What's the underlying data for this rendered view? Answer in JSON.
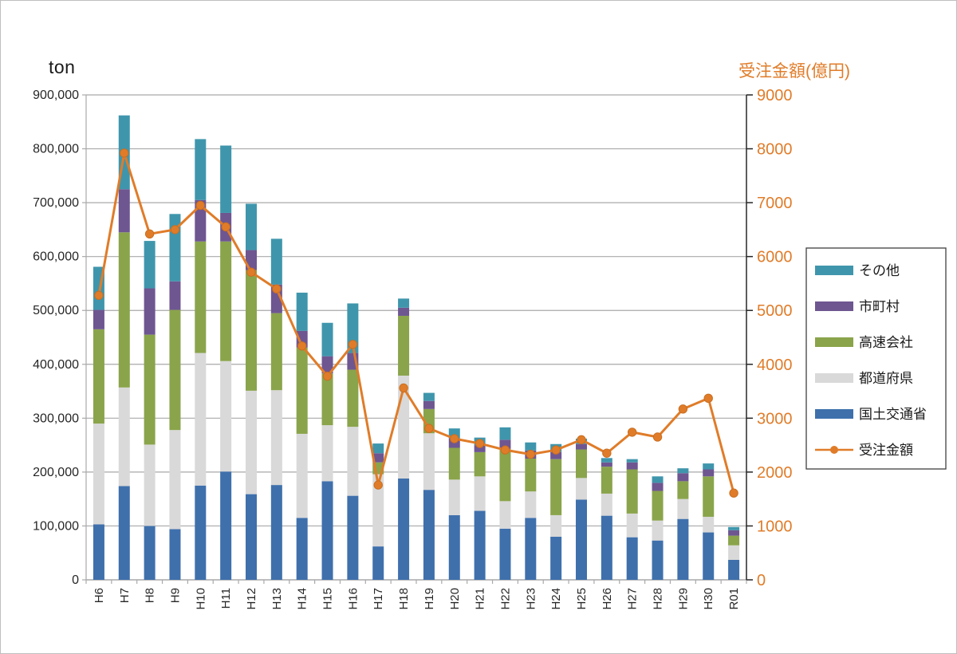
{
  "chart_data": {
    "type": "bar",
    "subtype": "stacked-bar-with-line",
    "categories": [
      "H6",
      "H7",
      "H8",
      "H9",
      "H10",
      "H11",
      "H12",
      "H13",
      "H14",
      "H15",
      "H16",
      "H17",
      "H18",
      "H19",
      "H20",
      "H21",
      "H22",
      "H23",
      "H24",
      "H25",
      "H26",
      "H27",
      "H28",
      "H29",
      "H30",
      "R01"
    ],
    "series": [
      {
        "name": "国土交通省",
        "color": "#3f70ac",
        "values": [
          103000,
          174000,
          100000,
          94000,
          175000,
          201000,
          159000,
          176000,
          115000,
          183000,
          156000,
          62000,
          188000,
          167000,
          120000,
          128000,
          95000,
          115000,
          80000,
          149000,
          119000,
          79000,
          73000,
          113000,
          88000,
          37000
        ]
      },
      {
        "name": "都道府県",
        "color": "#d9d9d9",
        "values": [
          187000,
          183000,
          151000,
          184000,
          246000,
          205000,
          192000,
          176000,
          156000,
          104000,
          128000,
          134000,
          191000,
          105000,
          66000,
          64000,
          51000,
          49000,
          40000,
          40000,
          41000,
          44000,
          37000,
          37000,
          29000,
          27000
        ]
      },
      {
        "name": "高速会社",
        "color": "#8aa44b",
        "values": [
          175000,
          288000,
          204000,
          223000,
          207000,
          222000,
          224000,
          143000,
          160000,
          96000,
          106000,
          22000,
          111000,
          45000,
          59000,
          45000,
          97000,
          61000,
          104000,
          53000,
          50000,
          82000,
          55000,
          33000,
          75000,
          18000
        ]
      },
      {
        "name": "市町村",
        "color": "#6e5691",
        "values": [
          36000,
          80000,
          86000,
          53000,
          77000,
          53000,
          37000,
          53000,
          31000,
          32000,
          31000,
          17000,
          15000,
          15000,
          18000,
          13000,
          17000,
          15000,
          13000,
          10000,
          8000,
          13000,
          15000,
          15000,
          13000,
          10000
        ]
      },
      {
        "name": "その他",
        "color": "#3f96ac",
        "values": [
          80000,
          137000,
          88000,
          125000,
          113000,
          125000,
          86000,
          85000,
          71000,
          62000,
          92000,
          18000,
          17000,
          15000,
          18000,
          14000,
          23000,
          15000,
          15000,
          10000,
          8000,
          6000,
          12000,
          9000,
          11000,
          6000
        ]
      }
    ],
    "line_series": {
      "name": "受注金額",
      "color": "#e07c29",
      "values": [
        5280,
        7920,
        6420,
        6500,
        6950,
        6550,
        5710,
        5400,
        4340,
        3780,
        4370,
        1760,
        3560,
        2810,
        2620,
        2530,
        2410,
        2330,
        2410,
        2600,
        2350,
        2740,
        2650,
        3170,
        3370,
        1610
      ]
    },
    "left_axis": {
      "title": "ton",
      "min": 0,
      "max": 900000,
      "step": 100000,
      "tick_labels": [
        "0",
        "100,000",
        "200,000",
        "300,000",
        "400,000",
        "500,000",
        "600,000",
        "700,000",
        "800,000",
        "900,000"
      ]
    },
    "right_axis": {
      "title": "受注金額(億円)",
      "min": 0,
      "max": 9000,
      "step": 1000,
      "tick_labels": [
        "0",
        "1000",
        "2000",
        "3000",
        "4000",
        "5000",
        "6000",
        "7000",
        "8000",
        "9000"
      ]
    },
    "legend": {
      "position": "right",
      "items": [
        {
          "label": "その他",
          "swatch": "box",
          "color": "#3f96ac"
        },
        {
          "label": "市町村",
          "swatch": "box",
          "color": "#6e5691"
        },
        {
          "label": "高速会社",
          "swatch": "box",
          "color": "#8aa44b"
        },
        {
          "label": "都道府県",
          "swatch": "box",
          "color": "#d9d9d9"
        },
        {
          "label": "国土交通省",
          "swatch": "box",
          "color": "#3f70ac"
        },
        {
          "label": "受注金額",
          "swatch": "line",
          "color": "#e07c29"
        }
      ]
    },
    "grid": true,
    "colors": {
      "gridline": "#a9a9a9",
      "axis_line": "#a9a9a9",
      "right_axis_line": "#262626",
      "axis_text": "#262626",
      "right_axis_text": "#e07c29",
      "legend_border": "#404040"
    }
  }
}
